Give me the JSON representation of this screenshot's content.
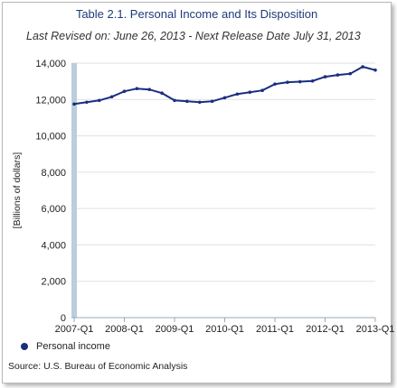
{
  "chart_data": {
    "type": "line",
    "title": "Table 2.1. Personal Income and Its Disposition",
    "subtitle": "Last Revised on: June 26, 2013 - Next Release Date July 31, 2013",
    "ylabel": "[Billions of dollars]",
    "ylim": [
      0,
      14000
    ],
    "yticks": [
      0,
      2000,
      4000,
      6000,
      8000,
      10000,
      12000,
      14000
    ],
    "ytick_labels": [
      "0",
      "2,000",
      "4,000",
      "6,000",
      "8,000",
      "10,000",
      "12,000",
      "14,000"
    ],
    "x_tick_labels": [
      "2007-Q1",
      "2008-Q1",
      "2009-Q1",
      "2010-Q1",
      "2011-Q1",
      "2012-Q1",
      "2013-Q1"
    ],
    "x": [
      "2007-Q1",
      "2007-Q2",
      "2007-Q3",
      "2007-Q4",
      "2008-Q1",
      "2008-Q2",
      "2008-Q3",
      "2008-Q4",
      "2009-Q1",
      "2009-Q2",
      "2009-Q3",
      "2009-Q4",
      "2010-Q1",
      "2010-Q2",
      "2010-Q3",
      "2010-Q4",
      "2011-Q1",
      "2011-Q2",
      "2011-Q3",
      "2011-Q4",
      "2012-Q1",
      "2012-Q2",
      "2012-Q3",
      "2012-Q4",
      "2013-Q1"
    ],
    "grid": true,
    "legend_position": "bottom-left",
    "series": [
      {
        "name": "Personal income",
        "color": "#1a2e80",
        "values": [
          11750,
          11850,
          11950,
          12150,
          12450,
          12600,
          12550,
          12350,
          11950,
          11900,
          11850,
          11900,
          12100,
          12300,
          12400,
          12500,
          12850,
          12950,
          12980,
          13020,
          13250,
          13350,
          13420,
          13800,
          13620
        ]
      }
    ]
  },
  "source": "Source: U.S. Bureau of Economic Analysis"
}
